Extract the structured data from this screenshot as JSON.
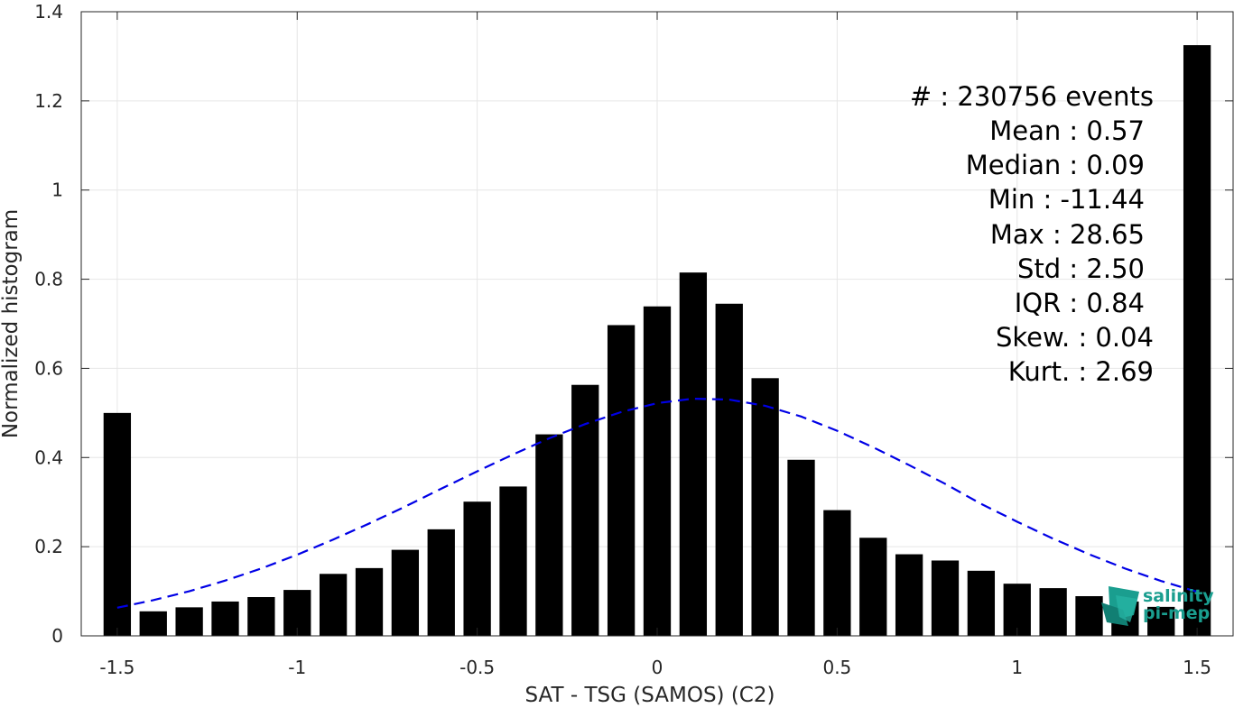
{
  "chart_data": {
    "type": "bar",
    "xlabel": "SAT - TSG (SAMOS) (C2)",
    "ylabel": "Normalized histogram",
    "xlim": [
      -1.6,
      1.6
    ],
    "ylim": [
      0,
      1.4
    ],
    "grid": true,
    "x_ticks": [
      {
        "value": -1.5,
        "label": "-1.5"
      },
      {
        "value": -1.0,
        "label": "-1"
      },
      {
        "value": -0.5,
        "label": "-0.5"
      },
      {
        "value": 0.0,
        "label": "0"
      },
      {
        "value": 0.5,
        "label": "0.5"
      },
      {
        "value": 1.0,
        "label": "1"
      },
      {
        "value": 1.5,
        "label": "1.5"
      }
    ],
    "y_ticks": [
      {
        "value": 0.0,
        "label": "0"
      },
      {
        "value": 0.2,
        "label": "0.2"
      },
      {
        "value": 0.4,
        "label": "0.4"
      },
      {
        "value": 0.6,
        "label": "0.6"
      },
      {
        "value": 0.8,
        "label": "0.8"
      },
      {
        "value": 1.0,
        "label": "1"
      },
      {
        "value": 1.2,
        "label": "1.2"
      },
      {
        "value": 1.4,
        "label": "1.4"
      }
    ],
    "bin_width": 0.1,
    "bar_color": "#000000",
    "bins": {
      "x": [
        -1.5,
        -1.4,
        -1.3,
        -1.2,
        -1.1,
        -1.0,
        -0.9,
        -0.8,
        -0.7,
        -0.6,
        -0.5,
        -0.4,
        -0.3,
        -0.2,
        -0.1,
        0.0,
        0.1,
        0.2,
        0.3,
        0.4,
        0.5,
        0.6,
        0.7,
        0.8,
        0.9,
        1.0,
        1.1,
        1.2,
        1.3,
        1.4,
        1.5
      ],
      "values": [
        0.5,
        0.055,
        0.064,
        0.077,
        0.087,
        0.103,
        0.139,
        0.152,
        0.193,
        0.239,
        0.301,
        0.335,
        0.452,
        0.563,
        0.697,
        0.739,
        0.815,
        0.745,
        0.578,
        0.395,
        0.282,
        0.22,
        0.183,
        0.169,
        0.146,
        0.117,
        0.107,
        0.089,
        0.077,
        0.065,
        1.325
      ]
    },
    "fit_curve": {
      "style": "dashed",
      "color": "#0000e6",
      "x": [
        -1.5,
        -1.4,
        -1.3,
        -1.2,
        -1.1,
        -1.0,
        -0.9,
        -0.8,
        -0.7,
        -0.6,
        -0.5,
        -0.4,
        -0.3,
        -0.2,
        -0.1,
        0.0,
        0.1,
        0.2,
        0.3,
        0.4,
        0.5,
        0.6,
        0.7,
        0.8,
        0.9,
        1.0,
        1.1,
        1.2,
        1.3,
        1.4,
        1.5
      ],
      "values": [
        0.063,
        0.08,
        0.1,
        0.124,
        0.151,
        0.182,
        0.216,
        0.252,
        0.29,
        0.33,
        0.369,
        0.407,
        0.443,
        0.475,
        0.502,
        0.522,
        0.532,
        0.53,
        0.516,
        0.492,
        0.46,
        0.423,
        0.383,
        0.341,
        0.296,
        0.256,
        0.218,
        0.183,
        0.151,
        0.123,
        0.099
      ]
    },
    "annotations": [
      "#  : 230756 events",
      "Mean : 0.57",
      "Median : 0.09",
      "Min : -11.44",
      "Max : 28.65",
      "Std : 2.50",
      "IQR : 0.84",
      "Skew. : 0.04",
      "Kurt. : 2.69"
    ]
  },
  "logo": {
    "line1": "salinity",
    "line2": "pi-mep",
    "color": "#1a9e8f"
  }
}
